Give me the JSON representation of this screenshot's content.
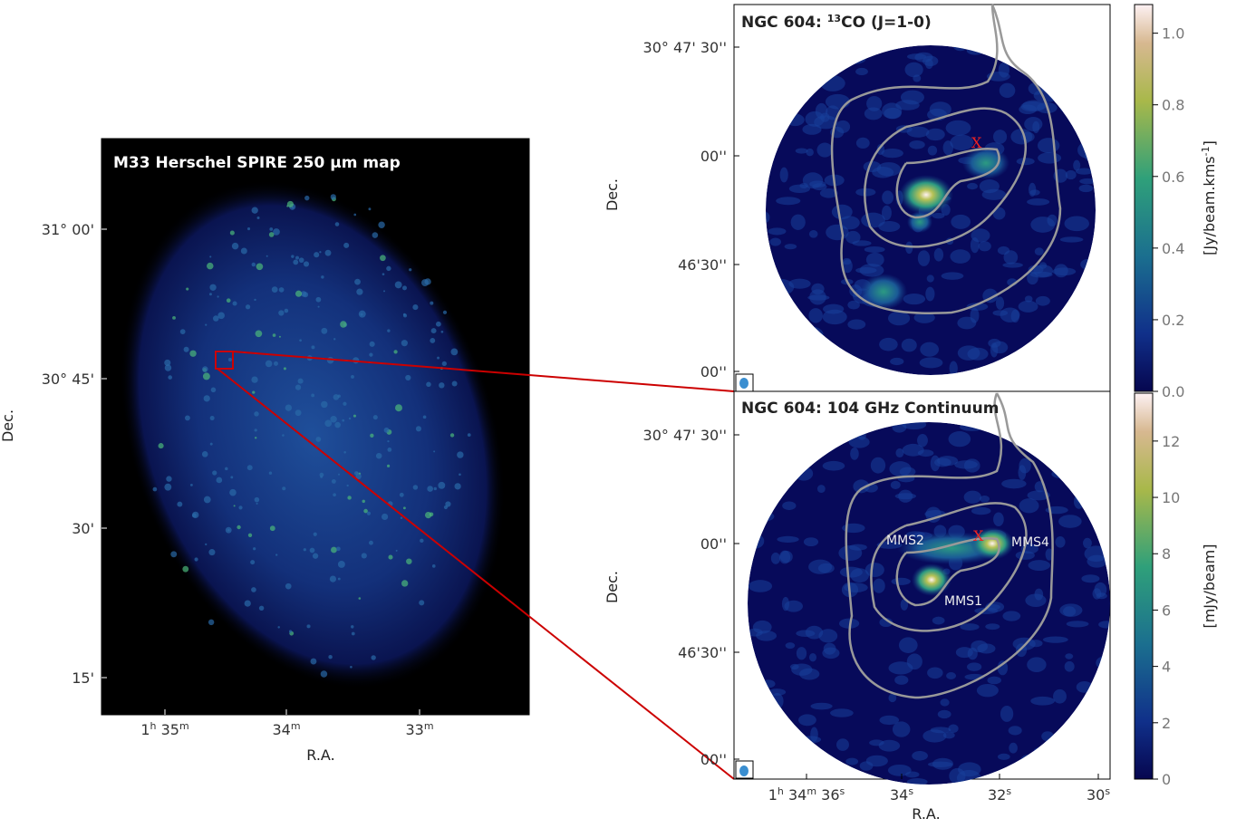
{
  "left": {
    "title": "M33 Herschel SPIRE 250 μm map",
    "ylabel": "Dec.",
    "xlabel": "R.A.",
    "yticks": [
      "31° 00'",
      "30° 45'",
      "30'",
      "15'"
    ],
    "xticks": [
      [
        "1",
        "h",
        " 35",
        "m"
      ],
      [
        "34",
        "m"
      ],
      [
        "33",
        "m"
      ]
    ]
  },
  "top_right": {
    "title": [
      "NGC 604: ",
      "13",
      "CO (J=1-0)"
    ],
    "ylabel": "Dec.",
    "yticks": [
      "30° 47' 30''",
      "00''",
      "46'30''",
      "00''"
    ],
    "marker": "X"
  },
  "bottom_right": {
    "title": "NGC 604: 104 GHz Continuum",
    "ylabel": "Dec.",
    "xlabel": "R.A.",
    "yticks": [
      "30° 47' 30''",
      "00''",
      "46'30''",
      "00''"
    ],
    "xticks": [
      [
        "1",
        "h",
        " 34",
        "m",
        " 36",
        "s"
      ],
      [
        "34",
        "s"
      ],
      [
        "32",
        "s"
      ],
      [
        "30",
        "s"
      ]
    ],
    "marker": "X",
    "sources": [
      "MMS2",
      "MMS4",
      "MMS1"
    ]
  },
  "colorbars": [
    {
      "label": [
        "[Jy/beam.kms",
        "-1",
        "]"
      ],
      "ylim": [
        0,
        1.08
      ],
      "ticks": [
        {
          "value": 0,
          "label": "0.0"
        },
        0.2,
        0.4,
        0.6,
        0.8,
        {
          "value": 1,
          "label": "1.0"
        }
      ]
    },
    {
      "label": [
        "[mJy/beam]"
      ],
      "ylim": [
        0,
        13.7
      ],
      "ticks": [
        0,
        2,
        4,
        6,
        8,
        10,
        12
      ]
    }
  ]
}
